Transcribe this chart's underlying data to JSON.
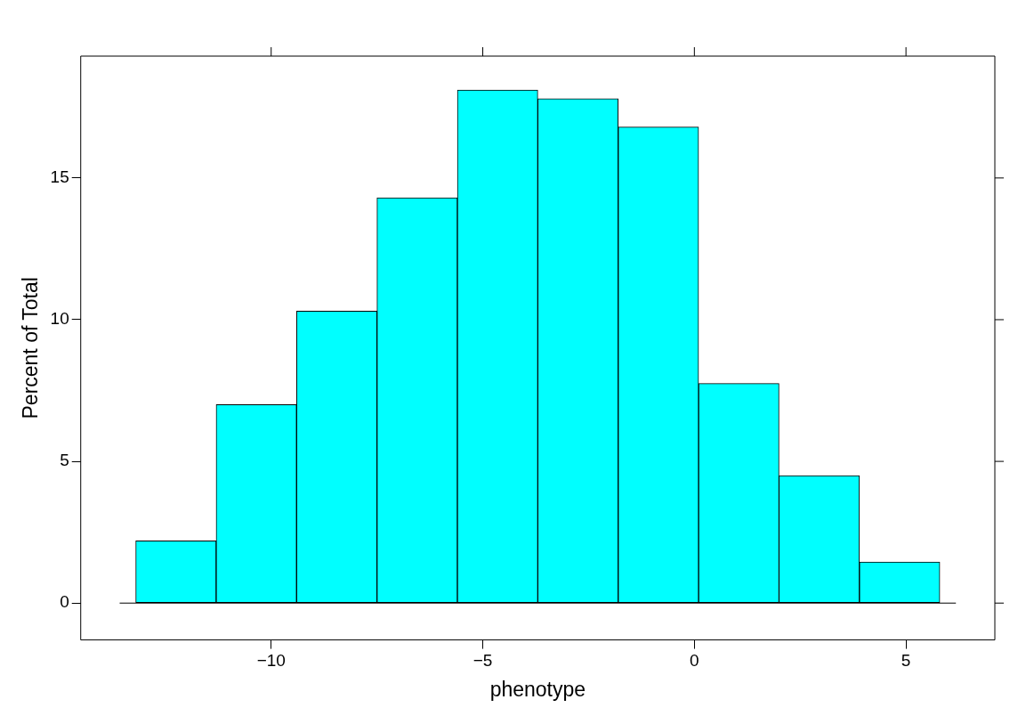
{
  "chart_data": {
    "type": "histogram",
    "xlabel": "phenotype",
    "ylabel": "Percent of Total",
    "bins": [
      -13.2,
      -11.3,
      -9.4,
      -7.5,
      -5.6,
      -3.7,
      -1.8,
      0.1,
      2.0,
      3.9,
      5.8
    ],
    "values": [
      2.2,
      7.0,
      10.3,
      14.3,
      18.1,
      17.8,
      16.8,
      7.75,
      4.5,
      1.45
    ],
    "color": "#00ffff",
    "xlim": [
      -14.5,
      7.1
    ],
    "xticks": [
      -10,
      -5,
      0,
      5
    ],
    "ylim": [
      -1.3,
      19.3
    ],
    "yticks": [
      0,
      5,
      10,
      15
    ],
    "ref_lines": [
      {
        "axis": "y",
        "value": 0,
        "color": "#000000"
      }
    ],
    "grid": false,
    "legend": false
  }
}
